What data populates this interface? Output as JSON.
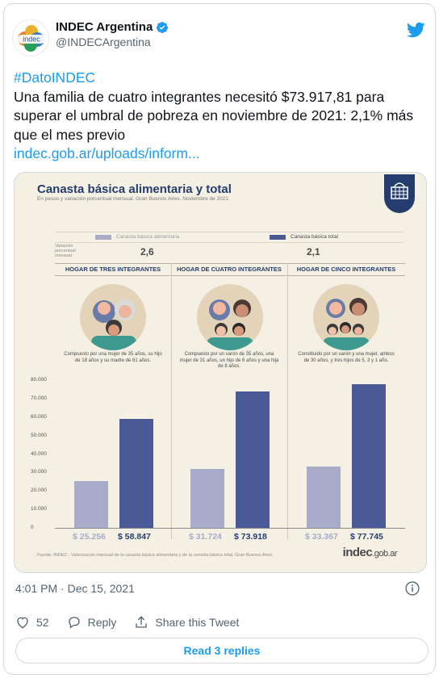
{
  "tweet": {
    "display_name": "INDEC Argentina",
    "handle": "@INDECArgentina",
    "avatar_text": "indec",
    "hashtag": "#DatoINDEC",
    "body": "Una familia de cuatro integrantes necesitó $73.917,81 para superar el umbral de pobreza en noviembre de 2021: 2,1% más que el mes previo",
    "link": "indec.gob.ar/uploads/inform...",
    "timestamp": "4:01 PM · Dec 15, 2021",
    "likes": "52",
    "reply_label": "Reply",
    "share_label": "Share this Tweet",
    "read_replies": "Read 3 replies"
  },
  "colors": {
    "accent": "#1d9bf0",
    "navy": "#253d6e",
    "lavender": "#a9acc9",
    "bar_total": "#4a5a96",
    "cream": "#f4f0e3"
  },
  "infographic": {
    "title": "Canasta básica alimentaria y total",
    "subtitle": "En pesos y variación porcentual mensual. Gran Buenos Aires. Noviembre de 2021.",
    "legend_cba": "Canasta básica alimentaria",
    "legend_cbt": "Canasta básica total",
    "variation_label": "Variación porcentual mensual",
    "variation_cba": "2,6",
    "variation_cbt": "2,1",
    "footer": "Fuente: INDEC - Valorización mensual de la canasta básica alimentaria y de la canasta básica total. Gran Buenos Aires.",
    "brand": "indec",
    "brand_suffix": ".gob.ar",
    "groups": [
      {
        "header": "HOGAR DE TRES INTEGRANTES",
        "desc": "Compuesto por una mujer de 35 años, su hijo de 18 años y su madre de 61 años.",
        "cba_label": "$ 25.256",
        "cbt_label": "$ 58.847"
      },
      {
        "header": "HOGAR DE CUATRO INTEGRANTES",
        "desc": "Compuesto por un varón de 35 años, una mujer de 31 años, un hijo de 6 años y una hija de 8 años.",
        "cba_label": "$ 31.724",
        "cbt_label": "$ 73.918"
      },
      {
        "header": "HOGAR DE CINCO INTEGRANTES",
        "desc": "Constituido por un varón y una mujer, ambos de 30 años, y tres hijos de 5, 3 y 1 año.",
        "cba_label": "$ 33.367",
        "cbt_label": "$ 77.745"
      }
    ]
  },
  "chart_data": {
    "type": "bar",
    "categories": [
      "HOGAR DE TRES INTEGRANTES",
      "HOGAR DE CUATRO INTEGRANTES",
      "HOGAR DE CINCO INTEGRANTES"
    ],
    "series": [
      {
        "name": "Canasta básica alimentaria",
        "values": [
          25256,
          31724,
          33367
        ]
      },
      {
        "name": "Canasta básica total",
        "values": [
          58847,
          73918,
          77745
        ]
      }
    ],
    "yticks": [
      "0",
      "10.000",
      "20.000",
      "30.000",
      "40.000",
      "50.000",
      "60.000",
      "70.000",
      "80.000"
    ],
    "ylim": [
      0,
      80000
    ],
    "grid": false,
    "legend": "top"
  }
}
